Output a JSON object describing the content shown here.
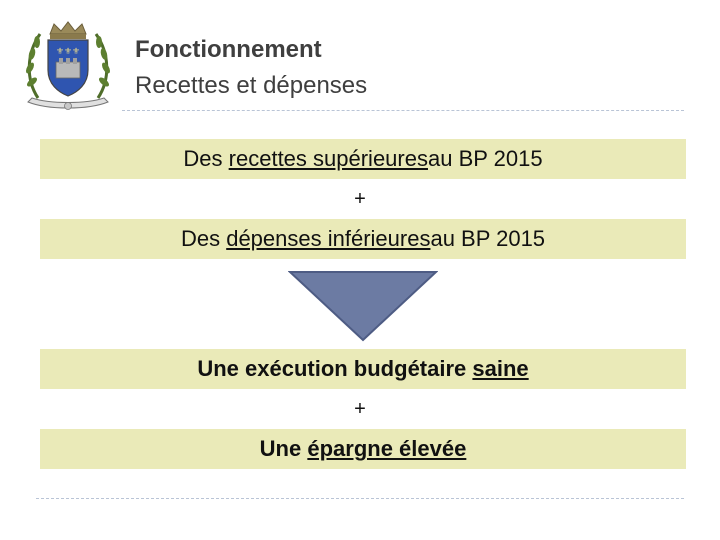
{
  "header": {
    "title": "Fonctionnement",
    "subtitle": "Recettes et dépenses"
  },
  "content": {
    "line1": {
      "pre": "Des ",
      "underlined": "recettes supérieures",
      "post": " au BP 2015"
    },
    "plus1": "+",
    "line2": {
      "pre": "Des ",
      "underlined": "dépenses inférieures",
      "post": " au BP 2015"
    },
    "line3": {
      "pre": "Une exécution budgétaire ",
      "underlined": "saine",
      "post": ""
    },
    "plus2": "+",
    "line4": {
      "pre": "Une ",
      "underlined": "épargne élevée",
      "post": ""
    }
  },
  "colors": {
    "band": "#eaeab8",
    "arrow": "#6c7ba3",
    "crest_shield": "#2f55b0",
    "laurel": "#4f6d2a"
  },
  "icons": {
    "crest": "coat-of-arms-icon",
    "arrow": "down-arrow-icon"
  }
}
